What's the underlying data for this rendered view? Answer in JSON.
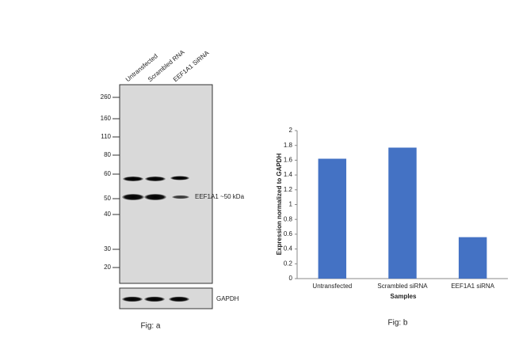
{
  "blot": {
    "lanes": [
      "Untransfected",
      "Scrambled RNA",
      "EEF1A1 SiRNA"
    ],
    "markers": [
      260,
      160,
      110,
      80,
      60,
      50,
      40,
      30,
      20
    ],
    "band_label": "EEF1A1 ~50 kDa",
    "loading_label": "GAPDH",
    "caption": "Fig: a"
  },
  "chart_data": {
    "type": "bar",
    "caption": "Fig: b",
    "x_label": "Samples",
    "y_label": "Expression normalized to GAPDH",
    "categories": [
      "Untransfected",
      "Scrambled siRNA",
      "EEF1A1 siRNA"
    ],
    "values": [
      1.62,
      1.77,
      0.56
    ],
    "color": "#4472c4",
    "ylim": [
      0,
      2
    ],
    "yticks": [
      0,
      0.2,
      0.4,
      0.6,
      0.8,
      1,
      1.2,
      1.4,
      1.6,
      1.8,
      2
    ],
    "grid": false
  }
}
